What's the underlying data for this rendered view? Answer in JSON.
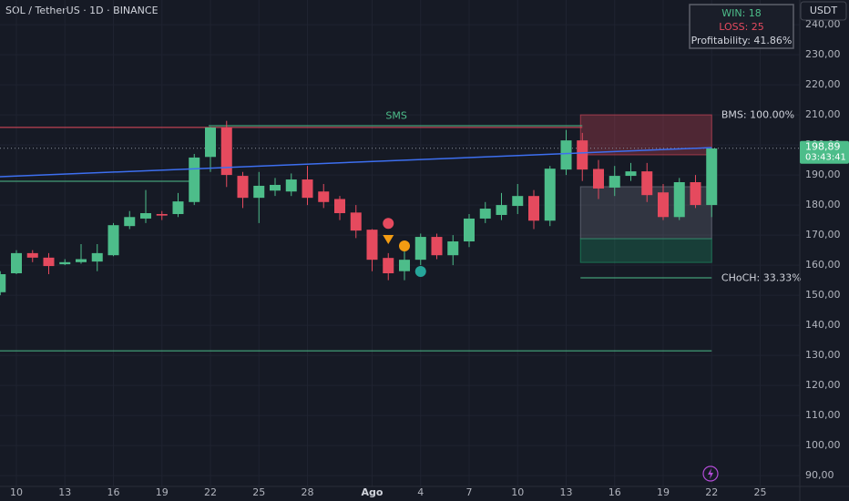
{
  "chart_data": {
    "type": "candlestick",
    "title": "SOL / TetherUS · 1D · BINANCE",
    "currency_button": "USDT",
    "categories": [
      null,
      "10",
      null,
      null,
      "13",
      null,
      null,
      "16",
      null,
      null,
      "19",
      null,
      null,
      "22",
      null,
      null,
      "25",
      null,
      null,
      "28",
      null,
      null,
      null,
      "Ago",
      null,
      null,
      "4",
      null,
      null,
      "7",
      null,
      null,
      "10",
      null,
      null,
      "13",
      null,
      null,
      "16",
      null,
      null,
      "19",
      null,
      null,
      "22",
      null,
      null,
      "25",
      null
    ],
    "open": [
      151,
      157.3,
      164,
      162.5,
      160.3,
      161,
      161.2,
      163.3,
      173,
      175.5,
      177,
      177,
      181,
      196,
      205.8,
      189.7,
      182.4,
      184.8,
      184.5,
      188.5,
      184.5,
      182,
      177.5,
      171.8,
      162.4,
      158,
      161.8,
      169.4,
      163.3,
      167.9,
      175.5,
      176.7,
      179.7,
      183,
      174.8,
      191.8,
      201.5,
      192,
      185.8,
      189.7,
      191.2,
      184.2,
      176,
      187.6,
      180,
      null,
      null,
      null,
      null
    ],
    "high": [
      158,
      165,
      165,
      164,
      162,
      167,
      167,
      174,
      178,
      185,
      178,
      184,
      197,
      206,
      208,
      191,
      191,
      189,
      190.5,
      193,
      187,
      183,
      180,
      172,
      164,
      166,
      170.5,
      170.5,
      170,
      177,
      181,
      184,
      187,
      185,
      193,
      205,
      204,
      195,
      193,
      194,
      194,
      187,
      189,
      190,
      199,
      null,
      null,
      null,
      null
    ],
    "low": [
      150,
      157,
      161,
      157,
      160,
      160.5,
      158,
      163,
      172,
      174,
      175,
      176,
      180,
      191,
      186,
      179,
      174,
      183,
      183,
      180,
      179,
      175,
      169,
      158,
      155,
      155,
      160,
      162,
      160,
      166,
      174,
      175,
      177,
      172,
      173,
      190,
      188,
      182,
      183,
      188,
      181,
      175,
      175,
      179,
      176,
      null,
      null,
      null,
      null
    ],
    "close": [
      157,
      164,
      162.5,
      159.7,
      161,
      162,
      164,
      173.3,
      176,
      177.3,
      176.5,
      181.2,
      195.8,
      205.8,
      190,
      182.4,
      186.4,
      186.7,
      188.5,
      182.4,
      181,
      177.3,
      171.5,
      161.8,
      157.3,
      161.8,
      169.4,
      163.3,
      167.9,
      175.5,
      178.8,
      180,
      183,
      174.8,
      192.1,
      201.5,
      191.8,
      185.5,
      189.7,
      191.2,
      183.3,
      176,
      187.6,
      180,
      198.8,
      null,
      null,
      null,
      null
    ],
    "up_color": "#4dbd8a",
    "down_color": "#e54a5e",
    "ylim": [
      86.4,
      248.2
    ],
    "yticks": [
      {
        "value": 90,
        "label": "90,00"
      },
      {
        "value": 100,
        "label": "100,00"
      },
      {
        "value": 110,
        "label": "110,00"
      },
      {
        "value": 120,
        "label": "120,00"
      },
      {
        "value": 130,
        "label": "130,00"
      },
      {
        "value": 140,
        "label": "140,00"
      },
      {
        "value": 150,
        "label": "150,00"
      },
      {
        "value": 160,
        "label": "160,00"
      },
      {
        "value": 170,
        "label": "170,00"
      },
      {
        "value": 180,
        "label": "180,00"
      },
      {
        "value": 190,
        "label": "190,00"
      },
      {
        "value": 200,
        "label": "200,00"
      },
      {
        "value": 210,
        "label": "210,00"
      },
      {
        "value": 220,
        "label": "220,00"
      },
      {
        "value": 230,
        "label": "230,00"
      },
      {
        "value": 240,
        "label": "240,00"
      }
    ],
    "grid": true,
    "current_price": {
      "value": 198.89,
      "label": "198,89",
      "countdown": "03:43:41",
      "color": "#4dbd8a"
    },
    "levels": [
      {
        "value": 205.8,
        "from": 0,
        "to": 36,
        "color": "#e54a5e"
      },
      {
        "value": 206.4,
        "from": 13,
        "to": 36,
        "color": "#4dbd8a"
      },
      {
        "value": 187.9,
        "from": 0,
        "to": 12,
        "color": "#4dbd8a"
      },
      {
        "value": 131.5,
        "from": 0,
        "to": 44,
        "color": "#4dbd8a"
      },
      {
        "value": 155.8,
        "from": 36,
        "to": 44,
        "color": "#4dbd8a"
      }
    ],
    "trendline": {
      "from": 0,
      "to": 44,
      "values": [
        189.4,
        199.1
      ],
      "color": "#3d6ff0"
    },
    "zones": [
      {
        "top": 210,
        "bottom": 196.7,
        "from": 36,
        "to": 44,
        "color": "#e54a5e"
      },
      {
        "top": 186.1,
        "bottom": 168.8,
        "from": 36,
        "to": 44,
        "color": "#7a7f8c"
      },
      {
        "top": 168.8,
        "bottom": 160.9,
        "from": 36,
        "to": 44,
        "color": "#1f9e6a"
      }
    ],
    "annotations": [
      {
        "text": "SMS",
        "value": 209.6,
        "index": 24.5,
        "color": "#4dbd8a"
      },
      {
        "text": "BMS: 100.00%",
        "value": 209.8,
        "index": 44.6,
        "color": "#d1d4dc"
      },
      {
        "text": "CHoCH: 33.33%",
        "value": 155.6,
        "index": 44.6,
        "color": "#d1d4dc"
      }
    ],
    "markers": [
      {
        "shape": "circle",
        "index": 24,
        "value": 173.9,
        "color": "#e54a5e"
      },
      {
        "shape": "triangle-down",
        "index": 24,
        "value": 168.5,
        "color": "#f39c12"
      },
      {
        "shape": "circle",
        "index": 25,
        "value": 166.4,
        "color": "#f39c12"
      },
      {
        "shape": "circle",
        "index": 26,
        "value": 157.9,
        "color": "#26a69a"
      }
    ],
    "stats": [
      {
        "text": "WIN: 18",
        "color": "#4dbd8a"
      },
      {
        "text": "LOSS: 25",
        "color": "#e54a5e"
      },
      {
        "text": "Profitability: 41.86%",
        "color": "#d1d4dc"
      }
    ]
  }
}
